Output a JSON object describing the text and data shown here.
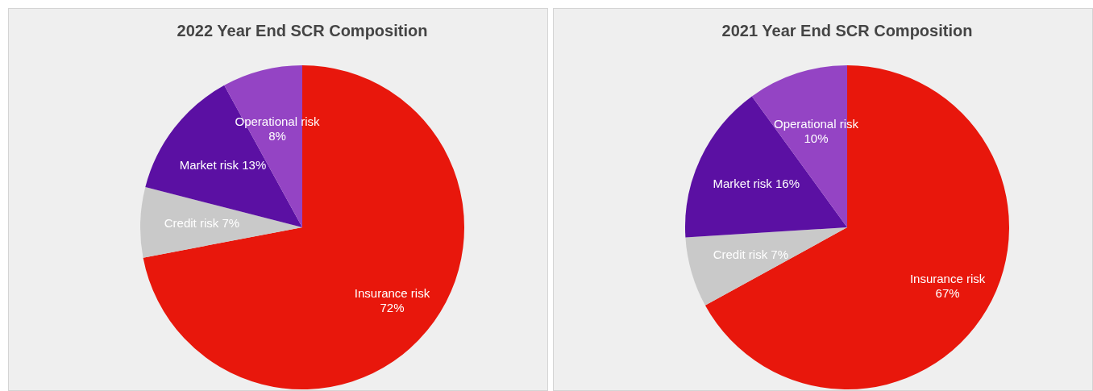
{
  "chart_data": [
    {
      "type": "pie",
      "title": "2022 Year End SCR Composition",
      "categories": [
        "Insurance risk",
        "Credit risk",
        "Market risk",
        "Operational risk"
      ],
      "values": [
        72,
        7,
        13,
        8
      ],
      "value_labels": [
        "72%",
        "7%",
        "13%",
        "8%"
      ],
      "colors": [
        "#e8170c",
        "#c9c9c9",
        "#5b10a3",
        "#9444c4"
      ],
      "legend": false
    },
    {
      "type": "pie",
      "title": "2021 Year End SCR Composition",
      "categories": [
        "Insurance risk",
        "Credit risk",
        "Market risk",
        "Operational risk"
      ],
      "values": [
        67,
        7,
        16,
        10
      ],
      "value_labels": [
        "67%",
        "7%",
        "16%",
        "10%"
      ],
      "colors": [
        "#e8170c",
        "#c9c9c9",
        "#5b10a3",
        "#9444c4"
      ],
      "legend": false
    }
  ]
}
